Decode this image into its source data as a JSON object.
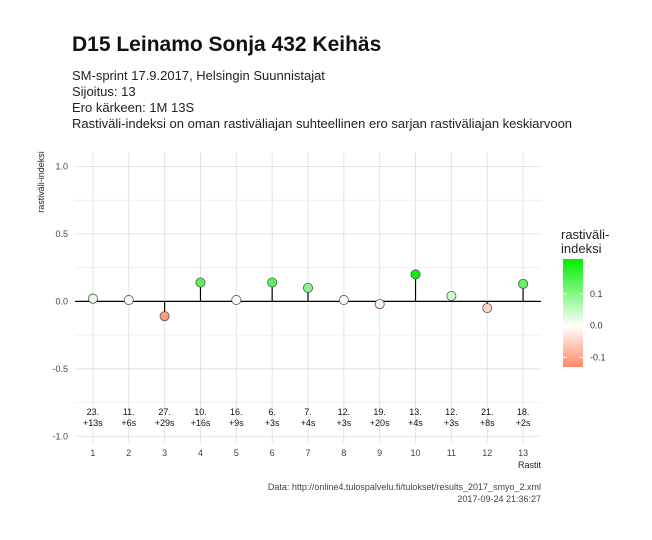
{
  "title": "D15 Leinamo Sonja 432 Keihäs",
  "subtitle_lines": [
    "SM-sprint 17.9.2017, Helsingin Suunnistajat",
    "Sijoitus: 13",
    "Ero kärkeen: 1M 13S",
    "Rastiväli-indeksi on oman rastiväliajan suhteellinen ero sarjan rastiväliajan keskiarvoon"
  ],
  "caption_lines": [
    "Data: http://online4.tulospalvelu.fi/tulokset/results_2017_smyo_2.xml",
    "2017-09-24 21:36:27"
  ],
  "chart_data": {
    "type": "scatter",
    "style": "lollipop",
    "xlabel": "Rastit",
    "ylabel": "rastiväli-indeksi",
    "xlim": [
      0.5,
      13.5
    ],
    "ylim": [
      -1.05,
      1.1
    ],
    "x_ticks": [
      "1",
      "2",
      "3",
      "4",
      "5",
      "6",
      "7",
      "8",
      "9",
      "10",
      "11",
      "12",
      "13"
    ],
    "y_ticks": [
      "1.0",
      "0.5",
      "0.0",
      "-0.5",
      "-1.0"
    ],
    "y_tick_values": [
      1.0,
      0.5,
      0.0,
      -0.5,
      -1.0
    ],
    "grid": true,
    "x": [
      1,
      2,
      3,
      4,
      5,
      6,
      7,
      8,
      9,
      10,
      11,
      12,
      13
    ],
    "y": [
      0.02,
      0.01,
      -0.11,
      0.14,
      0.01,
      0.14,
      0.1,
      0.01,
      -0.02,
      0.2,
      0.04,
      -0.05,
      0.13
    ],
    "annotations": [
      [
        "23.",
        "+13s"
      ],
      [
        "11.",
        "+6s"
      ],
      [
        "27.",
        "+29s"
      ],
      [
        "10.",
        "+16s"
      ],
      [
        "16.",
        "+9s"
      ],
      [
        "6.",
        "+3s"
      ],
      [
        "7.",
        "+4s"
      ],
      [
        "12.",
        "+3s"
      ],
      [
        "19.",
        "+20s"
      ],
      [
        "13.",
        "+4s"
      ],
      [
        "12.",
        "+3s"
      ],
      [
        "21.",
        "+8s"
      ],
      [
        "18.",
        "+2s"
      ]
    ],
    "legend": {
      "title_lines": [
        "rastiväli-",
        "indeksi"
      ],
      "placement": "right",
      "ticks": [
        "0.1",
        "0.0",
        "-0.1"
      ],
      "tick_values": [
        0.1,
        0.0,
        -0.1
      ],
      "range": [
        -0.13,
        0.21
      ],
      "color_high": "#00ee00",
      "color_mid": "#ffffff",
      "color_low": "#ff8866"
    }
  }
}
